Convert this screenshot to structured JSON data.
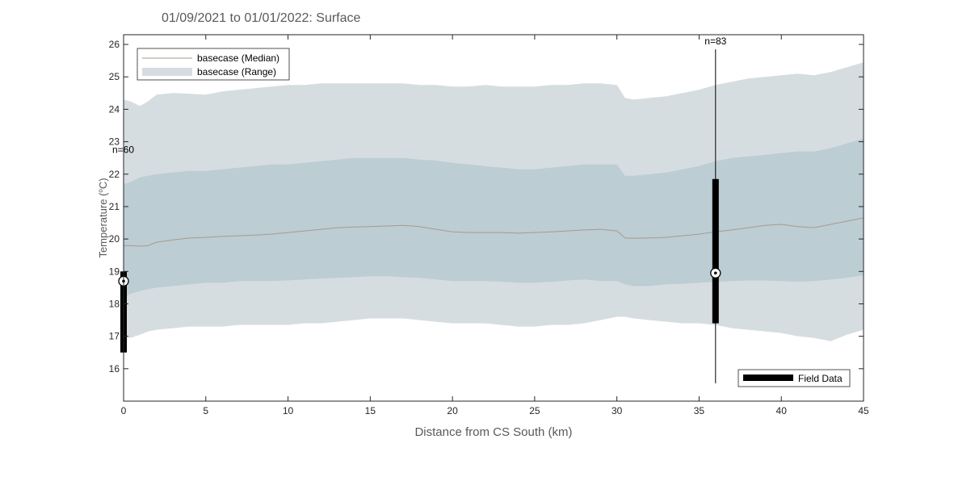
{
  "chart_data": {
    "type": "area",
    "title": "01/09/2021 to 01/01/2022: Surface",
    "xlabel": "Distance from CS South (km)",
    "ylabel_main": "Temperature (",
    "ylabel_deg": "o",
    "ylabel_unit": "C)",
    "xlim": [
      0,
      45
    ],
    "ylim": [
      15,
      26.3
    ],
    "x_ticks": [
      0,
      5,
      10,
      15,
      20,
      25,
      30,
      35,
      40,
      45
    ],
    "x_tick_labels": [
      "0",
      "5",
      "10",
      "15",
      "20",
      "25",
      "30",
      "35",
      "40",
      "45"
    ],
    "y_ticks": [
      16,
      17,
      18,
      19,
      20,
      21,
      22,
      23,
      24,
      25,
      26
    ],
    "y_tick_labels": [
      "16",
      "17",
      "18",
      "19",
      "20",
      "21",
      "22",
      "23",
      "24",
      "25",
      "26"
    ],
    "x": [
      0,
      0.4,
      1,
      1.5,
      2,
      3,
      4,
      5,
      6,
      7,
      8,
      9,
      10,
      11,
      12,
      13,
      14,
      15,
      16,
      17,
      18,
      19,
      20,
      21,
      22,
      23,
      24,
      25,
      26,
      27,
      28,
      29,
      30,
      30.5,
      31,
      32,
      33,
      34,
      35,
      36,
      37,
      38,
      39,
      40,
      41,
      42,
      43,
      44,
      45
    ],
    "series": [
      {
        "name": "basecase (Median)",
        "color": "#a89a8e",
        "values": [
          19.8,
          19.8,
          19.78,
          19.8,
          19.9,
          19.97,
          20.03,
          20.05,
          20.08,
          20.1,
          20.12,
          20.15,
          20.2,
          20.25,
          20.3,
          20.35,
          20.37,
          20.38,
          20.4,
          20.42,
          20.38,
          20.3,
          20.22,
          20.2,
          20.2,
          20.2,
          20.18,
          20.2,
          20.22,
          20.25,
          20.28,
          20.3,
          20.25,
          20.03,
          20.02,
          20.03,
          20.05,
          20.1,
          20.15,
          20.22,
          20.28,
          20.35,
          20.42,
          20.45,
          20.38,
          20.35,
          20.45,
          20.55,
          20.65
        ]
      },
      {
        "name": "basecase (Range)",
        "color": "#d6dde1",
        "outer_upper": [
          24.3,
          24.25,
          24.1,
          24.25,
          24.45,
          24.5,
          24.48,
          24.45,
          24.55,
          24.6,
          24.65,
          24.7,
          24.75,
          24.75,
          24.8,
          24.8,
          24.8,
          24.8,
          24.8,
          24.8,
          24.75,
          24.75,
          24.7,
          24.7,
          24.75,
          24.7,
          24.7,
          24.7,
          24.75,
          24.75,
          24.8,
          24.8,
          24.75,
          24.35,
          24.3,
          24.35,
          24.4,
          24.5,
          24.6,
          24.75,
          24.85,
          24.95,
          25.0,
          25.05,
          25.1,
          25.05,
          25.15,
          25.3,
          25.45
        ],
        "outer_lower": [
          17.0,
          16.95,
          17.05,
          17.15,
          17.2,
          17.25,
          17.3,
          17.3,
          17.3,
          17.35,
          17.35,
          17.35,
          17.35,
          17.4,
          17.4,
          17.45,
          17.5,
          17.55,
          17.55,
          17.55,
          17.5,
          17.45,
          17.4,
          17.4,
          17.4,
          17.35,
          17.3,
          17.3,
          17.35,
          17.35,
          17.4,
          17.5,
          17.6,
          17.6,
          17.55,
          17.5,
          17.45,
          17.4,
          17.4,
          17.35,
          17.25,
          17.2,
          17.15,
          17.1,
          17.0,
          16.95,
          16.85,
          17.05,
          17.2
        ],
        "inner_upper": [
          21.7,
          21.75,
          21.9,
          21.95,
          22.0,
          22.05,
          22.1,
          22.1,
          22.15,
          22.2,
          22.25,
          22.3,
          22.3,
          22.35,
          22.4,
          22.45,
          22.5,
          22.5,
          22.5,
          22.5,
          22.45,
          22.42,
          22.35,
          22.3,
          22.25,
          22.2,
          22.15,
          22.15,
          22.2,
          22.25,
          22.3,
          22.3,
          22.3,
          21.95,
          21.95,
          22.0,
          22.05,
          22.15,
          22.25,
          22.4,
          22.5,
          22.55,
          22.6,
          22.65,
          22.7,
          22.7,
          22.8,
          22.95,
          23.1
        ],
        "inner_lower": [
          18.2,
          18.3,
          18.4,
          18.45,
          18.5,
          18.55,
          18.6,
          18.65,
          18.65,
          18.7,
          18.7,
          18.7,
          18.72,
          18.75,
          18.78,
          18.8,
          18.82,
          18.85,
          18.85,
          18.82,
          18.8,
          18.75,
          18.7,
          18.7,
          18.7,
          18.68,
          18.65,
          18.65,
          18.68,
          18.72,
          18.75,
          18.7,
          18.7,
          18.6,
          18.55,
          18.55,
          18.6,
          18.62,
          18.65,
          18.68,
          18.7,
          18.72,
          18.72,
          18.7,
          18.68,
          18.7,
          18.75,
          18.8,
          18.88
        ]
      }
    ],
    "field_data": {
      "name": "Field Data",
      "color": "#000000",
      "points": [
        {
          "x": 0,
          "median": 18.7,
          "box_low": 16.5,
          "box_high": 19.0,
          "whisker_low": 16.5,
          "whisker_high": 22.5,
          "n_label": "n=60"
        },
        {
          "x": 36,
          "median": 18.95,
          "box_low": 17.4,
          "box_high": 21.85,
          "whisker_low": 15.55,
          "whisker_high": 25.85,
          "n_label": "n=83"
        }
      ]
    },
    "legend": {
      "position": "top-left",
      "entries": [
        "basecase (Median)",
        "basecase (Range)"
      ],
      "secondary_position": "bottom-right",
      "secondary_entries": [
        "Field Data"
      ]
    },
    "grid": false
  }
}
